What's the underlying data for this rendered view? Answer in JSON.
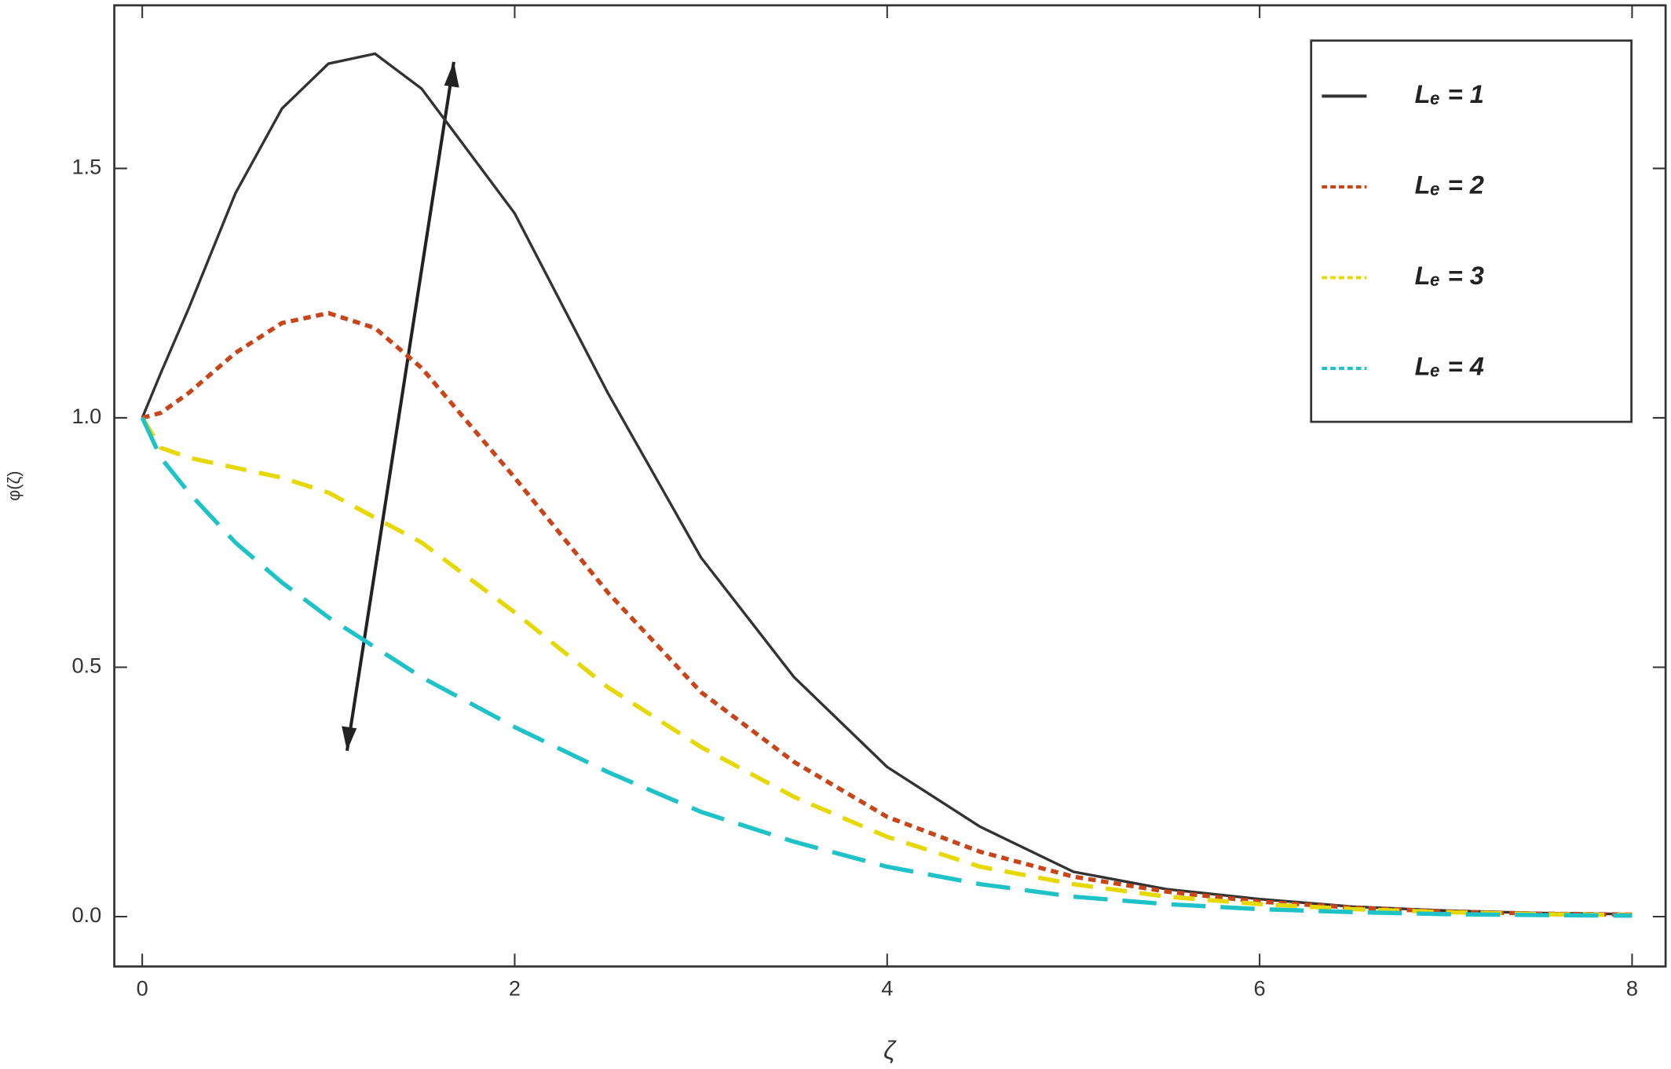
{
  "chart_data": {
    "type": "line",
    "x_label": "ζ",
    "y_label": "φ(ζ)",
    "x": [
      0,
      0.1,
      0.25,
      0.5,
      0.75,
      1,
      1.25,
      1.5,
      2,
      2.5,
      3,
      3.5,
      4,
      4.5,
      5,
      5.5,
      6,
      6.5,
      7,
      7.5,
      8
    ],
    "series": [
      {
        "name": "Lₑ = 1",
        "color": "#333333",
        "values": [
          1.0,
          1.09,
          1.22,
          1.45,
          1.62,
          1.71,
          1.73,
          1.66,
          1.41,
          1.05,
          0.72,
          0.48,
          0.3,
          0.18,
          0.09,
          0.055,
          0.035,
          0.02,
          0.012,
          0.007,
          0.005
        ]
      },
      {
        "name": "Lₑ = 2",
        "color": "#c8451a",
        "values": [
          1.0,
          1.01,
          1.05,
          1.13,
          1.19,
          1.21,
          1.18,
          1.1,
          0.88,
          0.65,
          0.45,
          0.31,
          0.2,
          0.13,
          0.08,
          0.05,
          0.03,
          0.018,
          0.01,
          0.006,
          0.004
        ]
      },
      {
        "name": "Lₑ = 3",
        "color": "#e6d800",
        "values": [
          1.0,
          0.94,
          0.92,
          0.9,
          0.88,
          0.85,
          0.8,
          0.75,
          0.61,
          0.46,
          0.34,
          0.24,
          0.16,
          0.1,
          0.065,
          0.04,
          0.025,
          0.015,
          0.009,
          0.005,
          0.003
        ]
      },
      {
        "name": "Lₑ = 4",
        "color": "#1ec3c8",
        "values": [
          1.0,
          0.92,
          0.85,
          0.75,
          0.67,
          0.6,
          0.54,
          0.48,
          0.38,
          0.29,
          0.21,
          0.15,
          0.1,
          0.065,
          0.04,
          0.025,
          0.015,
          0.009,
          0.005,
          0.003,
          0.002
        ]
      }
    ],
    "xlim": [
      -0.15,
      8.18
    ],
    "ylim": [
      -0.1,
      1.827
    ],
    "xticks": [
      0,
      2,
      4,
      6,
      8
    ],
    "yticks": [
      {
        "value": 0,
        "label": "0.0"
      },
      0.5,
      {
        "value": 1,
        "label": "1.0"
      },
      1.5
    ],
    "legend": "upper right"
  }
}
